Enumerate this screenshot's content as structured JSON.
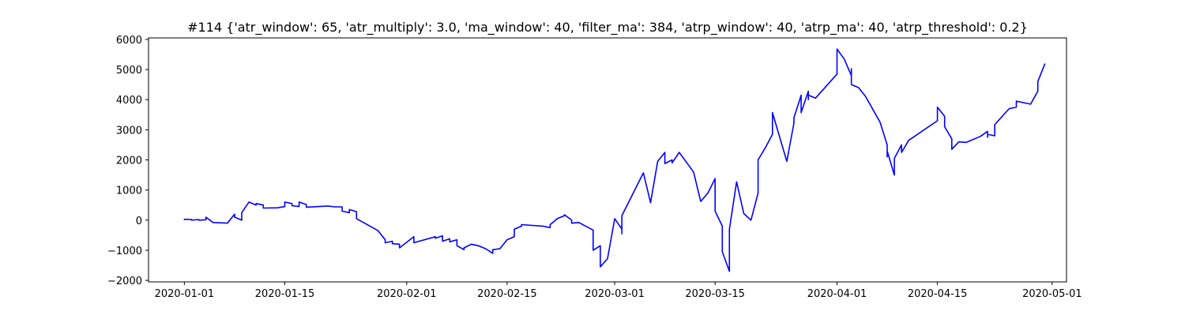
{
  "chart_data": {
    "type": "line",
    "title": "#114 {'atr_window': 65, 'atr_multiply': 3.0, 'ma_window': 40, 'filter_ma': 384, 'atrp_window': 40, 'atrp_ma': 40, 'atrp_threshold': 0.2}",
    "xlabel": "",
    "ylabel": "",
    "x_axis": "date",
    "xlim": [
      "2019-12-27",
      "2020-05-03"
    ],
    "ylim": [
      -2050,
      6050
    ],
    "grid": false,
    "legend": "none",
    "x_ticks": [
      "2020-01-01",
      "2020-01-15",
      "2020-02-01",
      "2020-02-15",
      "2020-03-01",
      "2020-03-15",
      "2020-04-01",
      "2020-04-15",
      "2020-05-01"
    ],
    "y_ticks": [
      -2000,
      -1000,
      0,
      1000,
      2000,
      3000,
      4000,
      5000,
      6000
    ],
    "line_color": "#0000ff",
    "series": [
      {
        "points": [
          [
            "2020-01-01",
            0
          ],
          [
            "2020-01-01",
            30
          ],
          [
            "2020-01-02",
            20
          ],
          [
            "2020-01-02",
            0
          ],
          [
            "2020-01-03",
            20
          ],
          [
            "2020-01-03",
            0
          ],
          [
            "2020-01-04",
            10
          ],
          [
            "2020-01-04",
            100
          ],
          [
            "2020-01-05",
            -80
          ],
          [
            "2020-01-07",
            -100
          ],
          [
            "2020-01-08",
            200
          ],
          [
            "2020-01-08",
            100
          ],
          [
            "2020-01-09",
            0
          ],
          [
            "2020-01-09",
            250
          ],
          [
            "2020-01-10",
            600
          ],
          [
            "2020-01-11",
            500
          ],
          [
            "2020-01-11",
            550
          ],
          [
            "2020-01-12",
            500
          ],
          [
            "2020-01-12",
            400
          ],
          [
            "2020-01-14",
            410
          ],
          [
            "2020-01-15",
            450
          ],
          [
            "2020-01-15",
            600
          ],
          [
            "2020-01-16",
            550
          ],
          [
            "2020-01-16",
            480
          ],
          [
            "2020-01-17",
            450
          ],
          [
            "2020-01-17",
            600
          ],
          [
            "2020-01-18",
            520
          ],
          [
            "2020-01-18",
            430
          ],
          [
            "2020-01-21",
            470
          ],
          [
            "2020-01-22",
            440
          ],
          [
            "2020-01-23",
            440
          ],
          [
            "2020-01-23",
            300
          ],
          [
            "2020-01-24",
            250
          ],
          [
            "2020-01-24",
            350
          ],
          [
            "2020-01-25",
            280
          ],
          [
            "2020-01-25",
            50
          ],
          [
            "2020-01-28",
            -350
          ],
          [
            "2020-01-29",
            -650
          ],
          [
            "2020-01-29",
            -750
          ],
          [
            "2020-01-30",
            -700
          ],
          [
            "2020-01-30",
            -780
          ],
          [
            "2020-01-31",
            -800
          ],
          [
            "2020-01-31",
            -920
          ],
          [
            "2020-02-02",
            -550
          ],
          [
            "2020-02-02",
            -750
          ],
          [
            "2020-02-05",
            -550
          ],
          [
            "2020-02-05",
            -600
          ],
          [
            "2020-02-06",
            -520
          ],
          [
            "2020-02-06",
            -700
          ],
          [
            "2020-02-07",
            -620
          ],
          [
            "2020-02-07",
            -720
          ],
          [
            "2020-02-08",
            -650
          ],
          [
            "2020-02-08",
            -850
          ],
          [
            "2020-02-09",
            -980
          ],
          [
            "2020-02-09",
            -920
          ],
          [
            "2020-02-10",
            -800
          ],
          [
            "2020-02-11",
            -850
          ],
          [
            "2020-02-12",
            -950
          ],
          [
            "2020-02-13",
            -1100
          ],
          [
            "2020-02-13",
            -980
          ],
          [
            "2020-02-14",
            -950
          ],
          [
            "2020-02-15",
            -650
          ],
          [
            "2020-02-16",
            -550
          ],
          [
            "2020-02-16",
            -300
          ],
          [
            "2020-02-17",
            -200
          ],
          [
            "2020-02-17",
            -150
          ],
          [
            "2020-02-20",
            -200
          ],
          [
            "2020-02-21",
            -250
          ],
          [
            "2020-02-21",
            -150
          ],
          [
            "2020-02-22",
            50
          ],
          [
            "2020-02-23",
            150
          ],
          [
            "2020-02-23",
            180
          ],
          [
            "2020-02-24",
            0
          ],
          [
            "2020-02-24",
            -100
          ],
          [
            "2020-02-25",
            -80
          ],
          [
            "2020-02-27",
            -330
          ],
          [
            "2020-02-27",
            -1000
          ],
          [
            "2020-02-28",
            -850
          ],
          [
            "2020-02-28",
            -1550
          ],
          [
            "2020-02-29",
            -1280
          ],
          [
            "2020-03-01",
            50
          ],
          [
            "2020-03-02",
            -300
          ],
          [
            "2020-03-02",
            -450
          ],
          [
            "2020-03-02",
            150
          ],
          [
            "2020-03-05",
            1570
          ],
          [
            "2020-03-06",
            580
          ],
          [
            "2020-03-07",
            1950
          ],
          [
            "2020-03-08",
            2250
          ],
          [
            "2020-03-08",
            1880
          ],
          [
            "2020-03-09",
            2000
          ],
          [
            "2020-03-09",
            1900
          ],
          [
            "2020-03-10",
            2250
          ],
          [
            "2020-03-12",
            1600
          ],
          [
            "2020-03-13",
            620
          ],
          [
            "2020-03-14",
            900
          ],
          [
            "2020-03-15",
            1380
          ],
          [
            "2020-03-15",
            300
          ],
          [
            "2020-03-16",
            -200
          ],
          [
            "2020-03-16",
            -400
          ],
          [
            "2020-03-16",
            -1050
          ],
          [
            "2020-03-17",
            -1700
          ],
          [
            "2020-03-17",
            -300
          ],
          [
            "2020-03-18",
            1270
          ],
          [
            "2020-03-19",
            220
          ],
          [
            "2020-03-20",
            0
          ],
          [
            "2020-03-21",
            900
          ],
          [
            "2020-03-21",
            2000
          ],
          [
            "2020-03-22",
            2400
          ],
          [
            "2020-03-23",
            2850
          ],
          [
            "2020-03-23",
            3570
          ],
          [
            "2020-03-25",
            1950
          ],
          [
            "2020-03-26",
            3230
          ],
          [
            "2020-03-26",
            3400
          ],
          [
            "2020-03-27",
            4150
          ],
          [
            "2020-03-27",
            3570
          ],
          [
            "2020-03-28",
            4280
          ],
          [
            "2020-03-28",
            4000
          ],
          [
            "2020-03-28",
            4150
          ],
          [
            "2020-03-29",
            4050
          ],
          [
            "2020-04-01",
            4850
          ],
          [
            "2020-04-01",
            5680
          ],
          [
            "2020-04-02",
            5350
          ],
          [
            "2020-04-03",
            4800
          ],
          [
            "2020-04-03",
            5030
          ],
          [
            "2020-04-03",
            4500
          ],
          [
            "2020-04-04",
            4400
          ],
          [
            "2020-04-05",
            4100
          ],
          [
            "2020-04-07",
            3250
          ],
          [
            "2020-04-08",
            2500
          ],
          [
            "2020-04-08",
            2100
          ],
          [
            "2020-04-08",
            2300
          ],
          [
            "2020-04-09",
            1500
          ],
          [
            "2020-04-09",
            2050
          ],
          [
            "2020-04-10",
            2500
          ],
          [
            "2020-04-10",
            2250
          ],
          [
            "2020-04-11",
            2650
          ],
          [
            "2020-04-15",
            3300
          ],
          [
            "2020-04-15",
            3750
          ],
          [
            "2020-04-16",
            3450
          ],
          [
            "2020-04-16",
            3100
          ],
          [
            "2020-04-17",
            2700
          ],
          [
            "2020-04-17",
            2350
          ],
          [
            "2020-04-18",
            2600
          ],
          [
            "2020-04-19",
            2580
          ],
          [
            "2020-04-21",
            2780
          ],
          [
            "2020-04-22",
            2950
          ],
          [
            "2020-04-22",
            2750
          ],
          [
            "2020-04-22",
            2850
          ],
          [
            "2020-04-23",
            2800
          ],
          [
            "2020-04-23",
            3170
          ],
          [
            "2020-04-25",
            3700
          ],
          [
            "2020-04-26",
            3750
          ],
          [
            "2020-04-26",
            3950
          ],
          [
            "2020-04-28",
            3850
          ],
          [
            "2020-04-29",
            4280
          ],
          [
            "2020-04-29",
            4600
          ],
          [
            "2020-04-30",
            5200
          ]
        ]
      }
    ]
  }
}
